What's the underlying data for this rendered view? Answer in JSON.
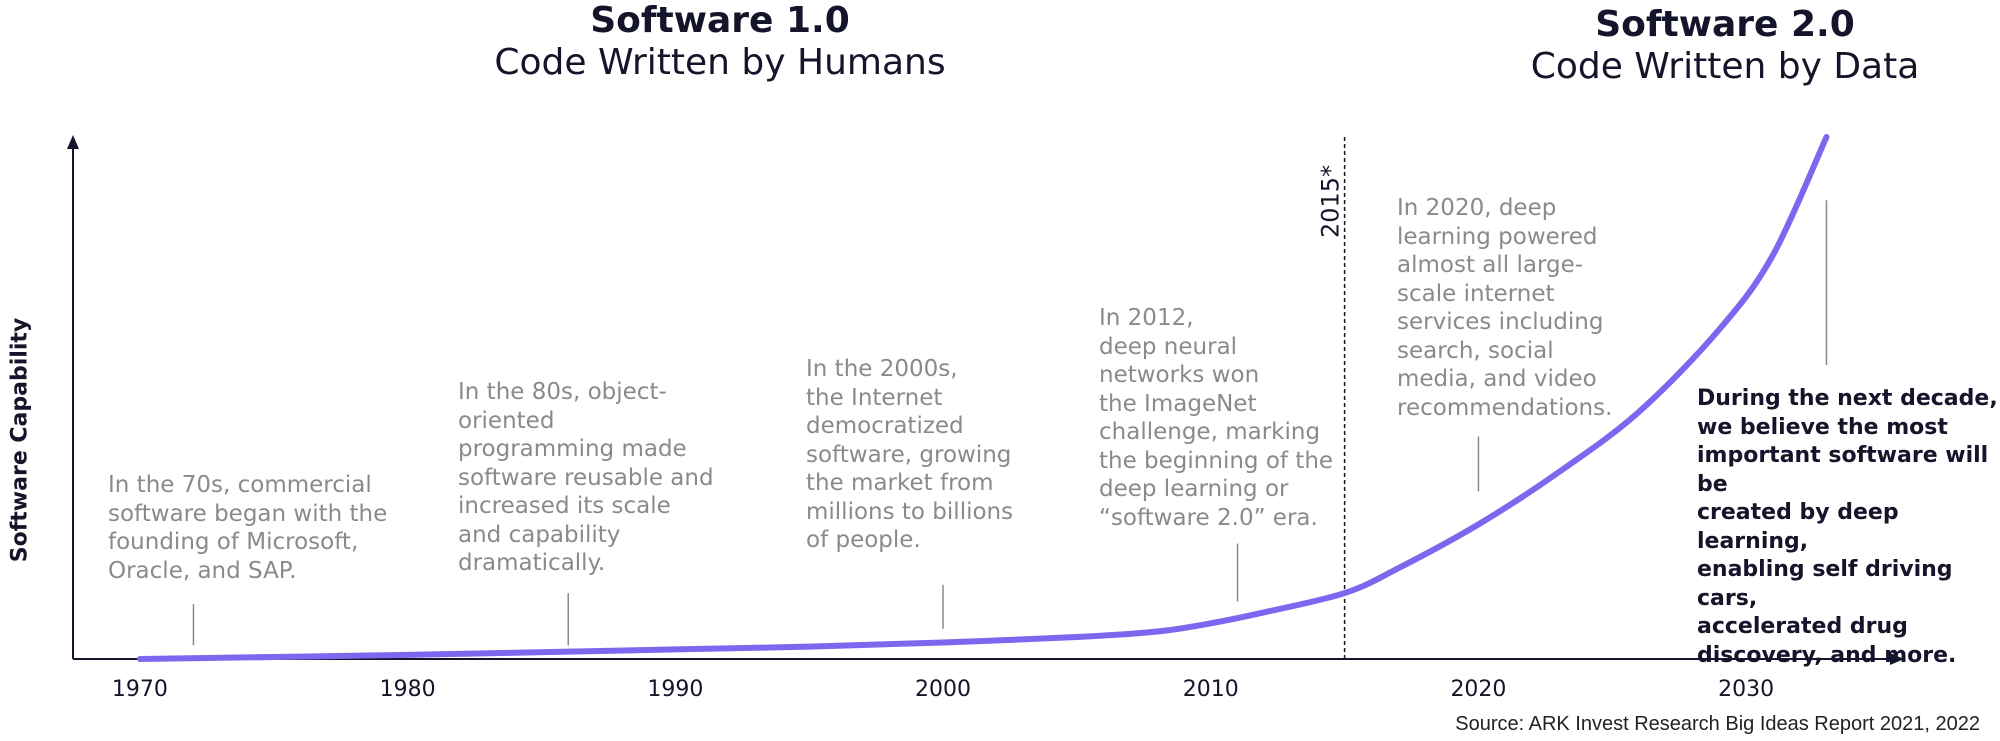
{
  "eras": [
    {
      "title": "Software 1.0",
      "subtitle": "Code Written by Humans"
    },
    {
      "title": "Software 2.0",
      "subtitle": "Code Written by Data"
    }
  ],
  "annotations": [
    {
      "text": "In the 70s, commercial\nsoftware began with the\nfounding of Microsoft,\nOracle, and SAP."
    },
    {
      "text": "In the 80s, object-\noriented\nprogramming made\nsoftware reusable and\nincreased its scale\nand capability\ndramatically."
    },
    {
      "text": "In the 2000s,\nthe Internet\ndemocratized\nsoftware, growing\nthe market from\nmillions to billions\nof people."
    },
    {
      "text": "In 2012,\ndeep neural\nnetworks won\nthe ImageNet\nchallenge, marking\nthe beginning of the\ndeep learning or\n“software 2.0” era."
    },
    {
      "text": "In 2020, deep\nlearning powered\nalmost all large-\nscale internet\nservices including\nsearch, social\nmedia, and video\nrecommendations."
    },
    {
      "text": "During the next decade,\nwe believe the most\nimportant software will be\ncreated by deep learning,\nenabling self driving cars,\naccelerated drug\ndiscovery, and more."
    }
  ],
  "source": "Source: ARK Invest Research Big Ideas Report 2021, 2022",
  "chart_data": {
    "type": "line",
    "title": "",
    "xlabel": "",
    "ylabel": "Software Capability",
    "xlim": [
      1967.5,
      2035
    ],
    "ylim": [
      0,
      19
    ],
    "x_ticks": [
      1970,
      1980,
      1990,
      2000,
      2010,
      2020,
      2030
    ],
    "x_tick_labels": [
      "1970",
      "1980",
      "1990",
      "2000",
      "2010",
      "2020",
      "2030"
    ],
    "marker": {
      "x": 2015,
      "label": "2015*",
      "style": "dashed"
    },
    "series": [
      {
        "name": "",
        "color": "#7b68ee",
        "x": [
          1970,
          1980,
          1990,
          1995,
          2000,
          2005,
          2008,
          2010,
          2012,
          2015,
          2017,
          2020,
          2023,
          2026,
          2029,
          2031,
          2033
        ],
        "y": [
          0,
          0.15,
          0.35,
          0.45,
          0.6,
          0.8,
          1.0,
          1.3,
          1.7,
          2.4,
          3.3,
          4.9,
          6.8,
          9.0,
          12.0,
          14.7,
          19.0
        ]
      }
    ],
    "annotation_leaders": [
      {
        "x": 1972,
        "y_from": 0.5,
        "y_to": 2.0
      },
      {
        "x": 1986,
        "y_from": 0.5,
        "y_to": 2.4
      },
      {
        "x": 2000,
        "y_from": 1.1,
        "y_to": 2.7
      },
      {
        "x": 2011,
        "y_from": 2.1,
        "y_to": 4.2
      },
      {
        "x": 2020,
        "y_from": 6.1,
        "y_to": 8.1
      },
      {
        "x": 2033,
        "y_from": 10.7,
        "y_to": 16.7
      }
    ],
    "grid": false,
    "legend": "none"
  }
}
